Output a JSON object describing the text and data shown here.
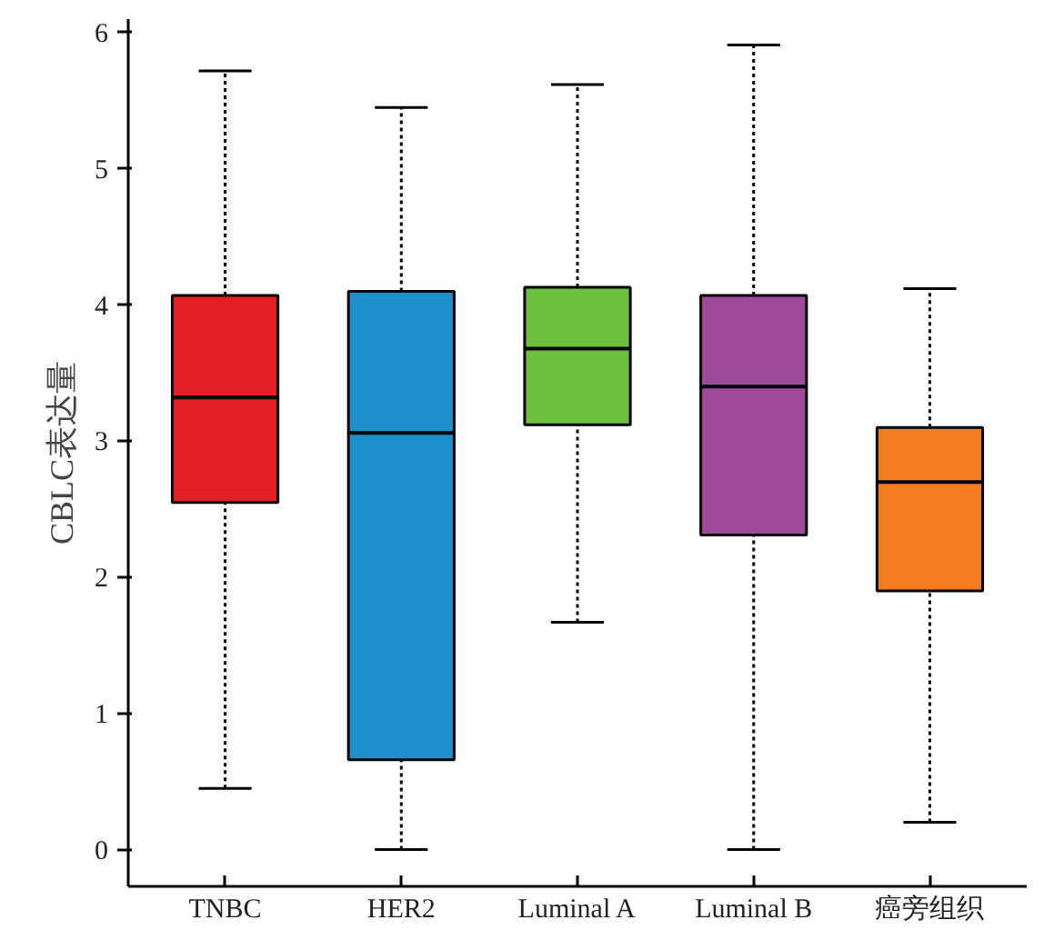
{
  "chart_data": {
    "type": "box",
    "ylabel": "CBLC表达量",
    "categories": [
      "TNBC",
      "HER2",
      "Luminal A",
      "Luminal B",
      "癌旁组织"
    ],
    "boxes": [
      {
        "low": 0.45,
        "q1": 2.55,
        "median": 3.32,
        "q3": 4.07,
        "high": 5.72
      },
      {
        "low": 0.0,
        "q1": 0.66,
        "median": 3.06,
        "q3": 4.1,
        "high": 5.45
      },
      {
        "low": 1.67,
        "q1": 3.12,
        "median": 3.68,
        "q3": 4.13,
        "high": 5.62
      },
      {
        "low": 0.0,
        "q1": 2.31,
        "median": 3.4,
        "q3": 4.07,
        "high": 5.91
      },
      {
        "low": 0.2,
        "q1": 1.9,
        "median": 2.7,
        "q3": 3.1,
        "high": 4.12
      }
    ],
    "colors": [
      "#e31e24",
      "#1e90cc",
      "#6cbf3f",
      "#a04a9c",
      "#f47b20"
    ],
    "ylim": [
      -0.27,
      6.1
    ],
    "yticks": [
      0,
      1,
      2,
      3,
      4,
      5,
      6
    ],
    "grid": false
  }
}
